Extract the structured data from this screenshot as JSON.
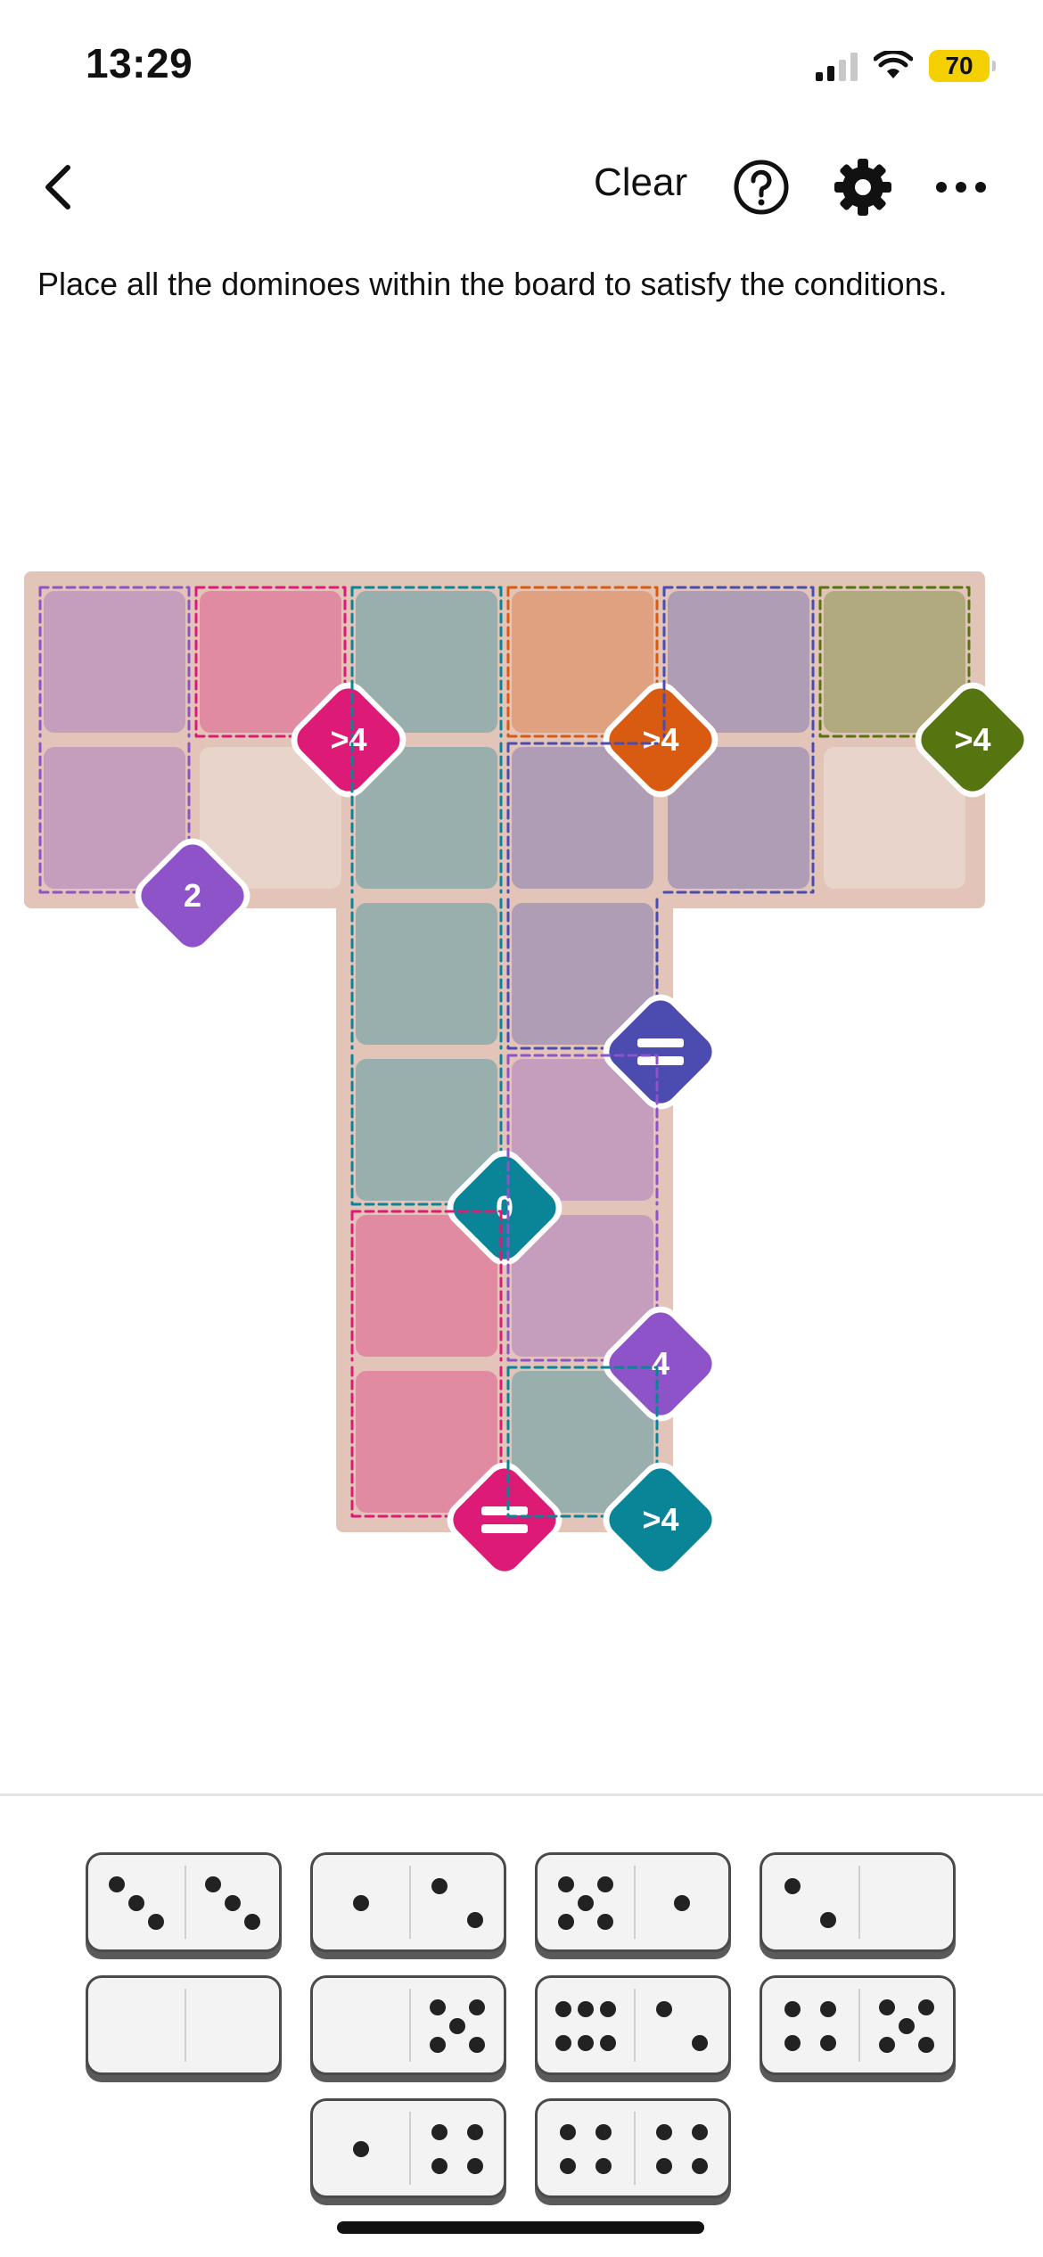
{
  "status_bar": {
    "time": "13:29",
    "battery_level": "70"
  },
  "header": {
    "clear_label": "Clear"
  },
  "instructions": "Place all the dominoes within the board to satisfy the conditions.",
  "regions": [
    {
      "id": "r-tl",
      "label": "2",
      "color": "#8e52c9",
      "cells": [
        [
          0,
          0
        ],
        [
          1,
          0
        ]
      ]
    },
    {
      "id": "r-pink-top",
      "label": ">4",
      "color": "#dd1a76",
      "cells": [
        [
          0,
          1
        ]
      ]
    },
    {
      "id": "r-orange",
      "label": ">4",
      "color": "#d95b12",
      "cells": [
        [
          0,
          3
        ]
      ]
    },
    {
      "id": "r-green",
      "label": ">4",
      "color": "#567510",
      "cells": [
        [
          0,
          5
        ]
      ]
    },
    {
      "id": "r-navy",
      "label": "=",
      "color": "#4b4bb0",
      "cells": [
        [
          0,
          4
        ],
        [
          1,
          3
        ],
        [
          1,
          4
        ],
        [
          2,
          3
        ]
      ]
    },
    {
      "id": "r-teal",
      "label": "0",
      "color": "#0a8497",
      "cells": [
        [
          0,
          2
        ],
        [
          1,
          2
        ],
        [
          2,
          2
        ],
        [
          3,
          2
        ]
      ]
    },
    {
      "id": "r-purple-mid",
      "label": "4",
      "color": "#8e52c9",
      "cells": [
        [
          3,
          3
        ],
        [
          4,
          3
        ]
      ]
    },
    {
      "id": "r-pink-bottom",
      "label": "=",
      "color": "#dd1a76",
      "cells": [
        [
          4,
          2
        ],
        [
          5,
          2
        ]
      ]
    },
    {
      "id": "r-teal-small",
      "label": ">4",
      "color": "#0a8497",
      "cells": [
        [
          5,
          3
        ]
      ]
    }
  ],
  "domino_tray": [
    {
      "left": 3,
      "right": 3
    },
    {
      "left": 1,
      "right": 2
    },
    {
      "left": 5,
      "right": 1
    },
    {
      "left": 2,
      "right": 0
    },
    {
      "left": 0,
      "right": 0
    },
    {
      "left": 0,
      "right": 5
    },
    {
      "left": 6,
      "right": 2
    },
    {
      "left": 4,
      "right": 5
    },
    {
      "left": 1,
      "right": 4
    },
    {
      "left": 4,
      "right": 4
    }
  ]
}
